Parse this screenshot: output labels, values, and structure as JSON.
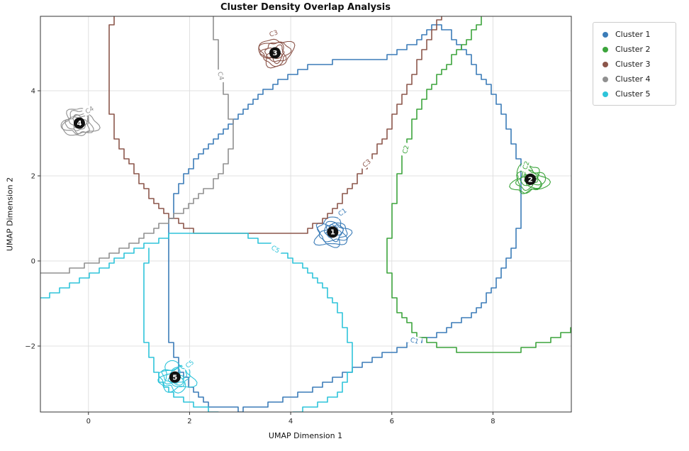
{
  "chart_data": {
    "type": "contour",
    "title": "Cluster Density Overlap Analysis",
    "xlabel": "UMAP Dimension 1",
    "ylabel": "UMAP Dimension 2",
    "xlim": [
      -0.95,
      9.55
    ],
    "ylim": [
      -3.55,
      5.75
    ],
    "xticks": [
      0,
      2,
      4,
      6,
      8
    ],
    "yticks": [
      -2,
      0,
      2,
      4
    ],
    "grid": true,
    "legend_position": "outside upper right",
    "colors": {
      "grid": "#e0e0e0",
      "spine": "#333333",
      "marker": "#111111",
      "tick_label": "#262626",
      "label_bg": "#ffffff"
    },
    "clusters": [
      {
        "name": "Cluster 1",
        "label": "C1",
        "marker": "1",
        "color": "#3b7cb8",
        "center": [
          4.83,
          0.68
        ],
        "inner_label": {
          "pos": [
            5.02,
            1.15
          ],
          "rot": -35
        },
        "outer_label": {
          "pos": [
            6.45,
            -1.87
          ],
          "rot": 15
        },
        "contours": [
          {
            "closed": true,
            "points": [
              [
                1.59,
                0.76
              ],
              [
                1.73,
                1.6
              ],
              [
                2.0,
                2.2
              ],
              [
                2.5,
                2.9
              ],
              [
                3.0,
                3.5
              ],
              [
                3.65,
                4.15
              ],
              [
                4.3,
                4.55
              ],
              [
                4.85,
                4.68
              ],
              [
                5.7,
                4.68
              ],
              [
                6.3,
                5.0
              ],
              [
                6.9,
                5.6
              ],
              [
                7.15,
                5.35
              ],
              [
                7.5,
                4.8
              ],
              [
                7.9,
                4.1
              ],
              [
                8.25,
                3.3
              ],
              [
                8.5,
                2.5
              ],
              [
                8.57,
                1.7
              ],
              [
                8.55,
                0.9
              ],
              [
                8.35,
                0.1
              ],
              [
                8.0,
                -0.7
              ],
              [
                7.55,
                -1.3
              ],
              [
                7.0,
                -1.7
              ],
              [
                6.5,
                -1.9
              ],
              [
                5.9,
                -2.2
              ],
              [
                5.2,
                -2.6
              ],
              [
                4.5,
                -3.0
              ],
              [
                3.8,
                -3.3
              ],
              [
                3.1,
                -3.5
              ],
              [
                2.55,
                -3.45
              ],
              [
                2.1,
                -3.1
              ],
              [
                1.8,
                -2.5
              ],
              [
                1.63,
                -1.8
              ],
              [
                1.57,
                -0.9
              ],
              [
                1.57,
                0.0
              ]
            ]
          }
        ]
      },
      {
        "name": "Cluster 2",
        "label": "C2",
        "marker": "2",
        "color": "#3ca43c",
        "center": [
          8.74,
          1.92
        ],
        "inner_label": {
          "pos": [
            8.65,
            2.25
          ],
          "rot": -70
        },
        "outer_label": {
          "pos": [
            6.27,
            2.62
          ],
          "rot": -75
        },
        "contours": [
          {
            "closed": false,
            "points": [
              [
                7.85,
                5.75
              ],
              [
                7.5,
                5.2
              ],
              [
                7.1,
                4.6
              ],
              [
                6.75,
                4.0
              ],
              [
                6.5,
                3.4
              ],
              [
                6.33,
                2.85
              ],
              [
                6.2,
                2.3
              ],
              [
                6.1,
                1.7
              ],
              [
                6.02,
                1.1
              ],
              [
                5.95,
                0.5
              ],
              [
                5.93,
                -0.1
              ],
              [
                5.98,
                -0.7
              ],
              [
                6.15,
                -1.25
              ],
              [
                6.45,
                -1.7
              ],
              [
                6.9,
                -2.0
              ],
              [
                7.4,
                -2.15
              ],
              [
                8.0,
                -2.2
              ],
              [
                8.55,
                -2.1
              ],
              [
                9.0,
                -1.9
              ],
              [
                9.56,
                -1.6
              ]
            ]
          }
        ]
      },
      {
        "name": "Cluster 3",
        "label": "C3",
        "marker": "3",
        "color": "#8c564b",
        "center": [
          3.69,
          4.89
        ],
        "inner_label": {
          "pos": [
            3.66,
            5.35
          ],
          "rot": -20
        },
        "outer_label": {
          "pos": [
            5.5,
            2.3
          ],
          "rot": -42
        },
        "contours": [
          {
            "closed": false,
            "points": [
              [
                0.5,
                5.76
              ],
              [
                0.42,
                5.2
              ],
              [
                0.37,
                4.6
              ],
              [
                0.4,
                4.0
              ],
              [
                0.45,
                3.4
              ],
              [
                0.55,
                2.9
              ],
              [
                0.75,
                2.4
              ],
              [
                1.0,
                1.9
              ],
              [
                1.3,
                1.4
              ],
              [
                1.65,
                1.0
              ],
              [
                2.0,
                0.72
              ],
              [
                2.4,
                0.66
              ],
              [
                2.8,
                0.62
              ],
              [
                3.3,
                0.65
              ],
              [
                3.8,
                0.66
              ],
              [
                4.3,
                0.7
              ],
              [
                4.6,
                0.95
              ],
              [
                4.95,
                1.35
              ],
              [
                5.25,
                1.85
              ],
              [
                5.55,
                2.35
              ],
              [
                5.8,
                2.8
              ],
              [
                6.0,
                3.3
              ],
              [
                6.2,
                3.85
              ],
              [
                6.45,
                4.5
              ],
              [
                6.7,
                5.1
              ],
              [
                6.95,
                5.76
              ]
            ]
          }
        ]
      },
      {
        "name": "Cluster 4",
        "label": "C4",
        "marker": "4",
        "color": "#909090",
        "center": [
          -0.18,
          3.24
        ],
        "inner_label": {
          "pos": [
            0.02,
            3.55
          ],
          "rot": -30
        },
        "outer_label": {
          "pos": [
            2.62,
            4.35
          ],
          "rot": 75
        },
        "contours": [
          {
            "closed": false,
            "points": [
              [
                2.42,
                5.76
              ],
              [
                2.52,
                5.1
              ],
              [
                2.6,
                4.5
              ],
              [
                2.72,
                3.9
              ],
              [
                2.82,
                3.3
              ],
              [
                2.85,
                2.75
              ],
              [
                2.7,
                2.2
              ],
              [
                2.4,
                1.7
              ],
              [
                2.0,
                1.3
              ],
              [
                1.55,
                0.9
              ],
              [
                1.1,
                0.55
              ],
              [
                0.65,
                0.25
              ],
              [
                0.2,
                0.0
              ],
              [
                -0.25,
                -0.2
              ],
              [
                -0.6,
                -0.28
              ],
              [
                -0.97,
                -0.3
              ]
            ]
          }
        ]
      },
      {
        "name": "Cluster 5",
        "label": "C5",
        "marker": "5",
        "color": "#2ec4da",
        "center": [
          1.71,
          -2.73
        ],
        "inner_label": {
          "pos": [
            2.0,
            -2.42
          ],
          "rot": -40
        },
        "outer_label": {
          "pos": [
            3.7,
            0.28
          ],
          "rot": 32
        },
        "contours": [
          {
            "closed": false,
            "points": [
              [
                -0.97,
                -0.86
              ],
              [
                -0.4,
                -0.6
              ],
              [
                0.1,
                -0.3
              ],
              [
                0.6,
                0.05
              ],
              [
                1.1,
                0.38
              ],
              [
                1.6,
                0.6
              ],
              [
                2.1,
                0.68
              ],
              [
                2.6,
                0.68
              ],
              [
                3.1,
                0.6
              ],
              [
                3.5,
                0.42
              ],
              [
                3.9,
                0.15
              ],
              [
                4.3,
                -0.2
              ],
              [
                4.65,
                -0.65
              ],
              [
                4.95,
                -1.2
              ],
              [
                5.15,
                -1.8
              ],
              [
                5.22,
                -2.4
              ],
              [
                5.1,
                -2.9
              ],
              [
                4.8,
                -3.25
              ],
              [
                4.4,
                -3.45
              ],
              [
                4.0,
                -3.57
              ]
            ]
          },
          {
            "closed": false,
            "points": [
              [
                1.2,
                0.3
              ],
              [
                1.1,
                -0.4
              ],
              [
                1.08,
                -1.2
              ],
              [
                1.15,
                -2.0
              ],
              [
                1.35,
                -2.7
              ],
              [
                1.7,
                -3.2
              ],
              [
                2.15,
                -3.45
              ],
              [
                2.6,
                -3.57
              ]
            ]
          }
        ]
      }
    ]
  }
}
